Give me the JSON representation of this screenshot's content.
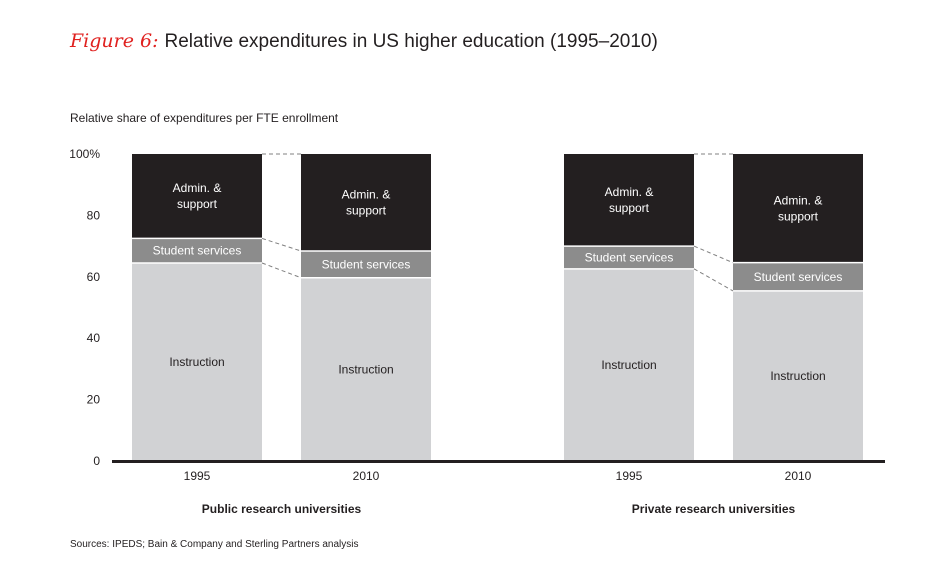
{
  "figure_label": "Figure 6:",
  "title": "Relative expenditures in US higher education (1995–2010)",
  "source": "Sources: IPEDS; Bain & Company and Sterling Partners analysis",
  "colors": {
    "instruction": "#d1d2d4",
    "student_services": "#8c8c8c",
    "admin_support": "#231f20",
    "title_accent": "#e0211f",
    "axis": "#231f20"
  },
  "chart_data": {
    "type": "bar",
    "stacked": true,
    "title": "Relative expenditures in US higher education (1995–2010)",
    "ylabel": "Relative share of expenditures per FTE enrollment",
    "ylim": [
      0,
      100
    ],
    "yticks": [
      0,
      20,
      40,
      60,
      80,
      100
    ],
    "ytick_labels": [
      "0",
      "20",
      "40",
      "60",
      "80",
      "100%"
    ],
    "groups": [
      {
        "name": "Public research universities",
        "categories": [
          "1995",
          "2010"
        ],
        "series": [
          {
            "name": "Instruction",
            "values": [
              64.5,
              59.7
            ]
          },
          {
            "name": "Student services",
            "values": [
              8.0,
              8.7
            ]
          },
          {
            "name": "Admin. & support",
            "values": [
              27.5,
              31.6
            ]
          }
        ]
      },
      {
        "name": "Private research universities",
        "categories": [
          "1995",
          "2010"
        ],
        "series": [
          {
            "name": "Instruction",
            "values": [
              62.6,
              55.4
            ]
          },
          {
            "name": "Student services",
            "values": [
              7.4,
              9.2
            ]
          },
          {
            "name": "Admin. & support",
            "values": [
              30.0,
              35.4
            ]
          }
        ]
      }
    ],
    "segment_labels": {
      "Instruction": [
        "Instruction"
      ],
      "Student services": [
        "Student services"
      ],
      "Admin. & support": [
        "Admin. &",
        "support"
      ]
    }
  }
}
